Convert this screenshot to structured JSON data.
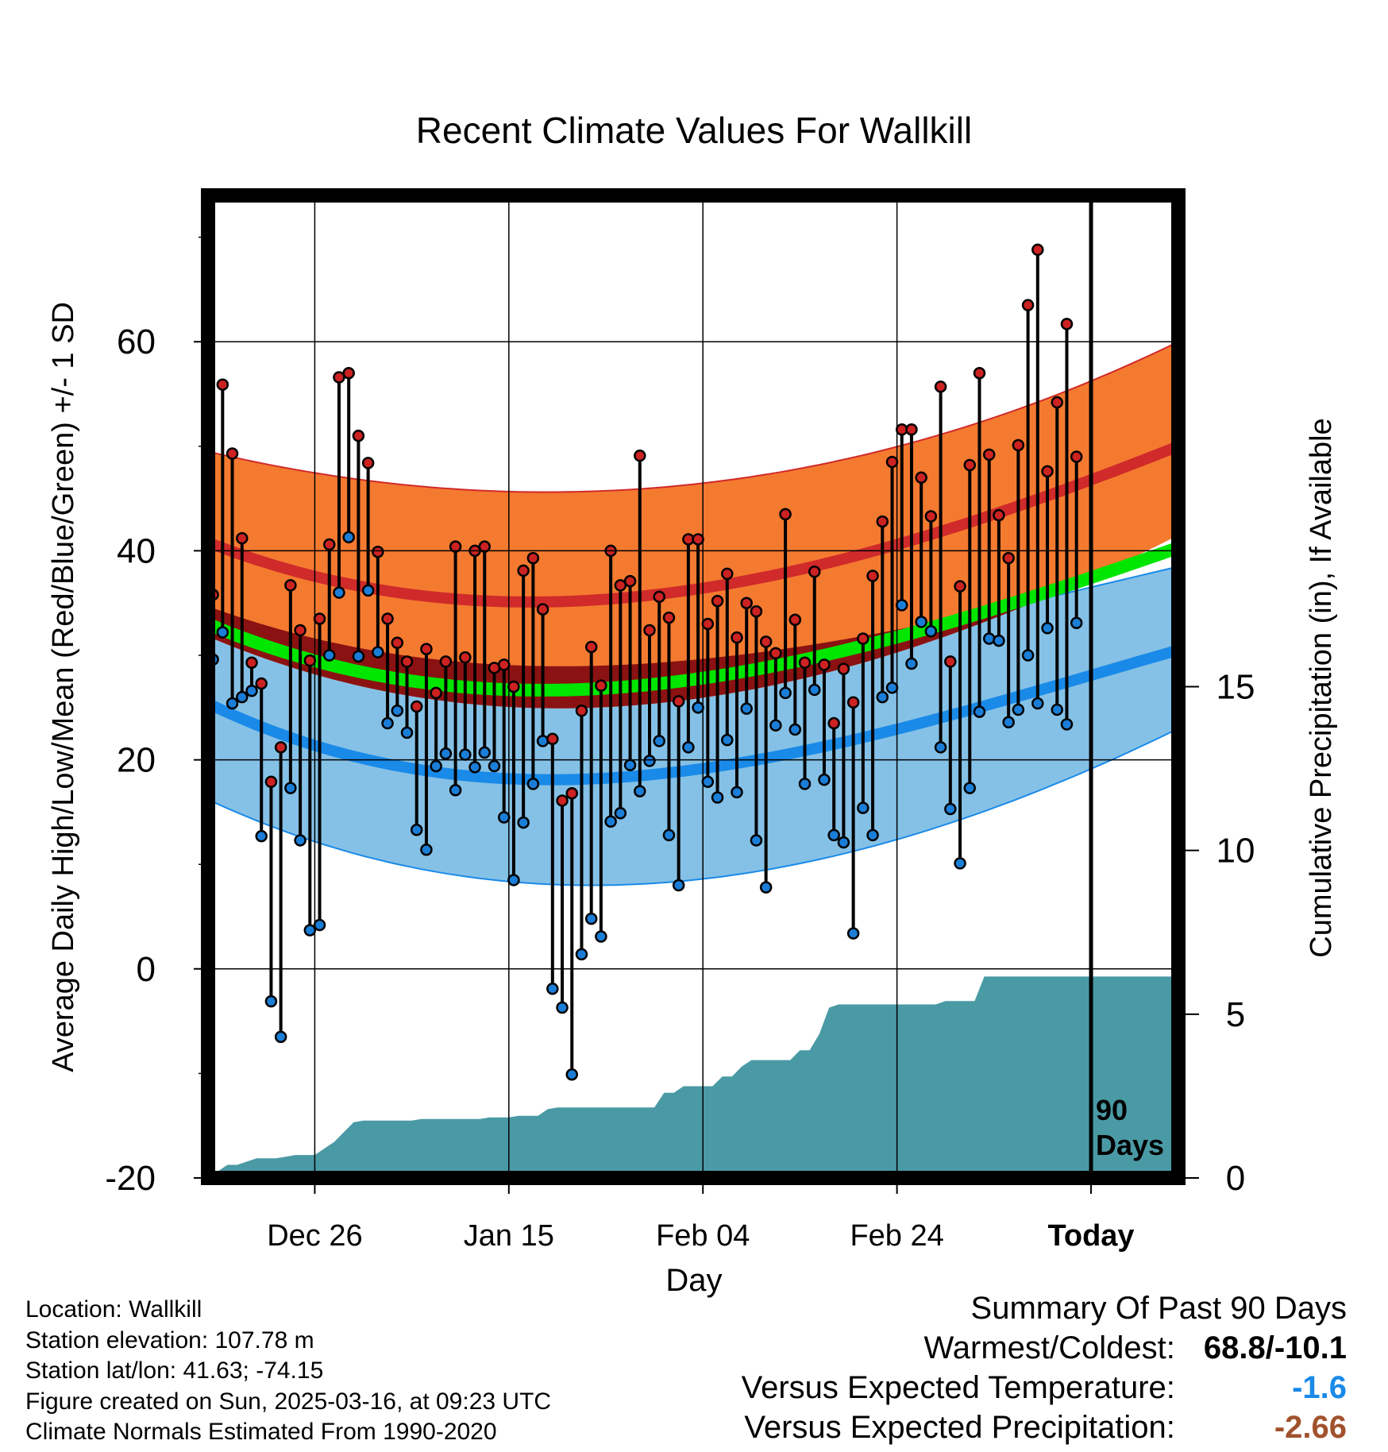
{
  "title": "Recent Climate Values For Wallkill",
  "chart_data": {
    "type": "line",
    "title": "Recent Climate Values For Wallkill",
    "xlabel": "Day",
    "ylabel": "Average Daily High/Low/Mean (Red/Blue/Green) +/- 1 SD",
    "y2label": "Cumulative Precipitation (in), If Available",
    "x_tick_labels": [
      "Dec 26",
      "Jan 15",
      "Feb 04",
      "Feb 24",
      "Today"
    ],
    "x_tick_days": [
      11,
      31,
      51,
      71,
      91
    ],
    "xlim": [
      0,
      100
    ],
    "ylim": [
      -20,
      74
    ],
    "y_ticks": [
      -20,
      0,
      20,
      40,
      60
    ],
    "y2lim": [
      0,
      30
    ],
    "y2_ticks": [
      0,
      5,
      10,
      15
    ],
    "today_label": "90 Days",
    "normal_high": {
      "mean": [
        40.8,
        35.3,
        38.0,
        50.0
      ],
      "upper": [
        49.5,
        45.7,
        47.7,
        60.0
      ],
      "lower": [
        31.8,
        25.0,
        27.5,
        41.5
      ]
    },
    "normal_low": {
      "mean": [
        25.4,
        18.2,
        20.6,
        30.5
      ],
      "upper": [
        34.7,
        29.0,
        30.7,
        38.5
      ],
      "lower": [
        16.2,
        8.0,
        9.9,
        23.0
      ]
    },
    "normal_mean": [
      33.0,
      26.8,
      29.3,
      40.3
    ],
    "normal_control_days": [
      0,
      40,
      60,
      100
    ],
    "daily_high": [
      35.8,
      55.9,
      49.3,
      41.2,
      29.3,
      27.3,
      17.9,
      21.2,
      36.7,
      32.4,
      29.5,
      33.5,
      40.6,
      56.6,
      57.0,
      51.0,
      48.4,
      39.9,
      33.5,
      31.2,
      29.4,
      25.1,
      30.6,
      26.4,
      29.4,
      40.4,
      29.8,
      40.0,
      40.4,
      28.8,
      29.1,
      27.0,
      38.1,
      39.3,
      34.4,
      22.0,
      16.1,
      16.8,
      24.7,
      30.8,
      27.1,
      40.0,
      36.7,
      37.1,
      49.1,
      32.4,
      35.6,
      33.6,
      25.6,
      41.1,
      41.1,
      33.0,
      35.2,
      37.8,
      31.7,
      35.0,
      34.2,
      31.3,
      30.2,
      43.5,
      33.4,
      29.3,
      38.0,
      29.1,
      23.5,
      28.7,
      25.5,
      31.6,
      37.6,
      42.8,
      48.5,
      51.6,
      51.6,
      47.0,
      43.3,
      55.7,
      29.4,
      36.6,
      48.2,
      57.0,
      49.2,
      43.4,
      39.3,
      50.1,
      63.5,
      68.8,
      47.6,
      54.2,
      61.7,
      49.0
    ],
    "daily_low": [
      29.6,
      32.2,
      25.4,
      26.0,
      26.6,
      12.7,
      -3.1,
      -6.5,
      17.3,
      12.3,
      3.7,
      4.2,
      30.0,
      36.0,
      41.3,
      29.9,
      36.2,
      30.3,
      23.5,
      24.7,
      22.6,
      13.3,
      11.4,
      19.4,
      20.6,
      17.1,
      20.5,
      19.3,
      20.7,
      19.4,
      14.5,
      8.5,
      14.0,
      17.7,
      21.8,
      -1.9,
      -3.7,
      -10.1,
      1.4,
      4.8,
      3.1,
      14.1,
      14.9,
      19.5,
      17.0,
      19.9,
      21.8,
      12.8,
      8.0,
      21.2,
      25.0,
      17.9,
      16.4,
      21.9,
      16.9,
      24.9,
      12.3,
      7.8,
      23.3,
      26.4,
      22.9,
      17.7,
      26.7,
      18.1,
      12.8,
      12.1,
      3.4,
      15.4,
      12.8,
      26.0,
      26.9,
      34.8,
      29.2,
      33.2,
      32.3,
      21.2,
      15.3,
      10.1,
      17.3,
      24.6,
      31.6,
      31.4,
      23.6,
      24.8,
      30.0,
      25.4,
      32.6,
      24.8,
      23.4,
      33.1
    ],
    "cumulative_precipitation_in": [
      0.0,
      0.2,
      0.4,
      0.4,
      0.5,
      0.6,
      0.6,
      0.6,
      0.65,
      0.7,
      0.7,
      0.7,
      0.9,
      1.1,
      1.4,
      1.7,
      1.75,
      1.75,
      1.75,
      1.75,
      1.75,
      1.75,
      1.8,
      1.8,
      1.8,
      1.8,
      1.8,
      1.8,
      1.8,
      1.85,
      1.85,
      1.85,
      1.9,
      1.9,
      1.9,
      2.1,
      2.15,
      2.15,
      2.15,
      2.15,
      2.15,
      2.15,
      2.15,
      2.15,
      2.15,
      2.15,
      2.15,
      2.6,
      2.6,
      2.8,
      2.8,
      2.8,
      2.8,
      3.1,
      3.1,
      3.4,
      3.6,
      3.6,
      3.6,
      3.6,
      3.6,
      3.9,
      3.9,
      4.4,
      5.2,
      5.3,
      5.3,
      5.3,
      5.3,
      5.3,
      5.3,
      5.3,
      5.3,
      5.3,
      5.3,
      5.3,
      5.4,
      5.4,
      5.4,
      5.4,
      6.15,
      6.15,
      6.15,
      6.15,
      6.15,
      6.15,
      6.15,
      6.15,
      6.15,
      6.15,
      6.15,
      6.15,
      6.15,
      6.15,
      6.15,
      6.15,
      6.15,
      6.15,
      6.15,
      6.15,
      6.15
    ],
    "colors": {
      "high_band": "#f47a30",
      "high_mean": "#d02a2a",
      "low_band": "#85c1e6",
      "low_mean": "#1a8ae8",
      "mean_line": "#00e600",
      "overlap": "#8b1212",
      "precip": "#4a9aa5",
      "high_dot": "#cc2222",
      "low_dot": "#1a7ed8"
    },
    "grid": true
  },
  "footer": {
    "location": "Location: Wallkill",
    "elevation": "Station elevation: 107.78 m",
    "latlon": "Station lat/lon: 41.63; -74.15",
    "created": "Figure created on Sun, 2025-03-16, at 09:23 UTC",
    "normals": "Climate Normals Estimated From 1990-2020"
  },
  "summary": {
    "heading": "Summary Of Past 90 Days",
    "warmest_label": "Warmest/Coldest:",
    "warmest_value": "68.8/-10.1",
    "temp_label": "Versus Expected Temperature:",
    "temp_value": "-1.6",
    "temp_color": "#1a8ae8",
    "precip_label": "Versus Expected Precipitation:",
    "precip_value": "-2.66",
    "precip_color": "#a0522d"
  }
}
